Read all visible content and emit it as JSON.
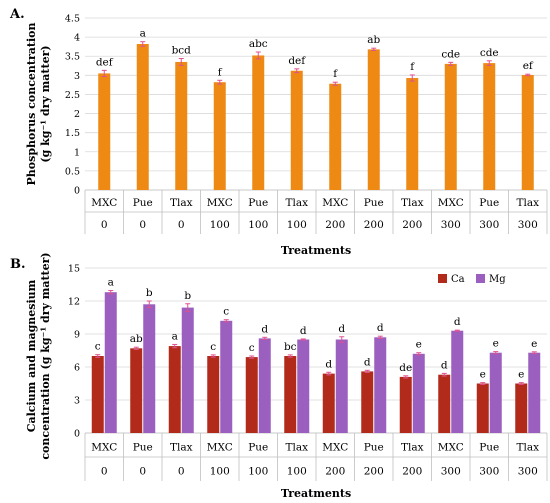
{
  "panel_a_label": "A.",
  "panel_b_label": "B.",
  "chart_data": [
    {
      "type": "bar",
      "ylabel_line1": "Phosphorus concentration",
      "ylabel_line2": "(g kg⁻¹ dry matter)",
      "xlabel": "Treatments",
      "ylim": [
        0,
        4.5
      ],
      "yticks": [
        "0",
        "0.5",
        "1",
        "1.5",
        "2",
        "2.5",
        "3",
        "3.5",
        "4",
        "4.5"
      ],
      "categories": [
        "MXC",
        "Pue",
        "Tlax",
        "MXC",
        "Pue",
        "Tlax",
        "MXC",
        "Pue",
        "Tlax",
        "MXC",
        "Pue",
        "Tlax"
      ],
      "doses": [
        "0",
        "0",
        "0",
        "100",
        "100",
        "100",
        "200",
        "200",
        "200",
        "300",
        "300",
        "300"
      ],
      "series": [
        {
          "values": [
            3.05,
            3.82,
            3.35,
            2.82,
            3.52,
            3.12,
            2.78,
            3.68,
            2.93,
            3.3,
            3.32,
            3.01
          ],
          "errors": [
            0.08,
            0.06,
            0.09,
            0.05,
            0.09,
            0.05,
            0.04,
            0.03,
            0.08,
            0.04,
            0.06,
            0.02
          ],
          "letters": [
            "def",
            "a",
            "bcd",
            "f",
            "abc",
            "def",
            "f",
            "ab",
            "f",
            "cde",
            "cde",
            "ef"
          ],
          "color": "#ee8a14"
        }
      ],
      "grid": true
    },
    {
      "type": "bar",
      "ylabel_line1": "Calcium and magnesium",
      "ylabel_line2": "concentration (g kg⁻¹ dry matter)",
      "xlabel": "Treatments",
      "ylim": [
        0,
        15
      ],
      "yticks": [
        "0",
        "3",
        "6",
        "9",
        "12",
        "15"
      ],
      "categories": [
        "MXC",
        "Pue",
        "Tlax",
        "MXC",
        "Pue",
        "Tlax",
        "MXC",
        "Pue",
        "Tlax",
        "MXC",
        "Pue",
        "Tlax"
      ],
      "doses": [
        "0",
        "0",
        "0",
        "100",
        "100",
        "100",
        "200",
        "200",
        "200",
        "300",
        "300",
        "300"
      ],
      "legend_position": "top-right",
      "series": [
        {
          "name": "Ca",
          "color": "#b22a1a",
          "values": [
            7.0,
            7.7,
            7.9,
            7.0,
            6.9,
            7.0,
            5.4,
            5.6,
            5.1,
            5.3,
            4.5,
            4.5
          ],
          "errors": [
            0.12,
            0.1,
            0.15,
            0.1,
            0.1,
            0.1,
            0.12,
            0.1,
            0.1,
            0.12,
            0.08,
            0.08
          ],
          "letters": [
            "c",
            "ab",
            "a",
            "c",
            "c",
            "bc",
            "d",
            "d",
            "de",
            "d",
            "e",
            "e"
          ]
        },
        {
          "name": "Mg",
          "color": "#9b5fc0",
          "values": [
            12.8,
            11.7,
            11.4,
            10.2,
            8.6,
            8.5,
            8.5,
            8.7,
            7.2,
            9.3,
            7.3,
            7.3
          ],
          "errors": [
            0.15,
            0.3,
            0.35,
            0.1,
            0.1,
            0.05,
            0.25,
            0.1,
            0.1,
            0.05,
            0.1,
            0.08
          ],
          "letters": [
            "a",
            "b",
            "b",
            "c",
            "d",
            "d",
            "d",
            "d",
            "e",
            "d",
            "e",
            "e"
          ]
        }
      ],
      "grid": true
    }
  ]
}
